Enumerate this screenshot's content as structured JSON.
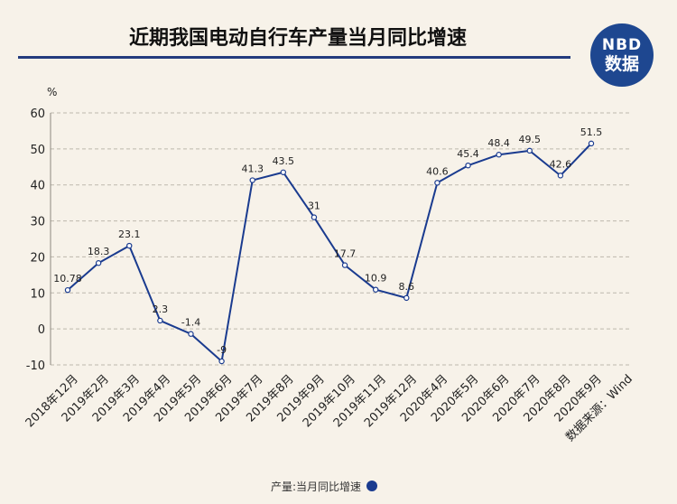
{
  "title": "近期我国电动自行车产量当月同比增速",
  "logo": {
    "line1": "NBD",
    "line2": "数据"
  },
  "source_note": "数据来源：Wind",
  "chart_data": {
    "type": "line",
    "title": "近期我国电动自行车产量当月同比增速",
    "ylabel": "%",
    "ylim": [
      -10,
      60
    ],
    "yticks": [
      -10,
      0,
      10,
      20,
      30,
      40,
      50,
      60
    ],
    "grid": true,
    "legend_position": "bottom",
    "categories": [
      "2018年12月",
      "2019年2月",
      "2019年3月",
      "2019年4月",
      "2019年5月",
      "2019年6月",
      "2019年7月",
      "2019年8月",
      "2019年9月",
      "2019年10月",
      "2019年11月",
      "2019年12月",
      "2020年4月",
      "2020年5月",
      "2020年6月",
      "2020年7月",
      "2020年8月",
      "2020年9月"
    ],
    "series": [
      {
        "name": "产量:当月同比增速",
        "values": [
          10.78,
          18.3,
          23.1,
          2.3,
          -1.4,
          -9,
          41.3,
          43.5,
          31,
          17.7,
          10.9,
          8.6,
          40.6,
          45.4,
          48.4,
          49.5,
          42.6,
          51.5
        ],
        "labels": [
          "10.78",
          "18.3",
          "23.1",
          "2.3",
          "-1.4",
          "-9",
          "41.3",
          "43.5",
          "31",
          "17.7",
          "10.9",
          "8.6",
          "40.6",
          "45.4",
          "48.4",
          "49.5",
          "42.6",
          "51.5"
        ],
        "color": "#1a3b8f"
      }
    ]
  }
}
